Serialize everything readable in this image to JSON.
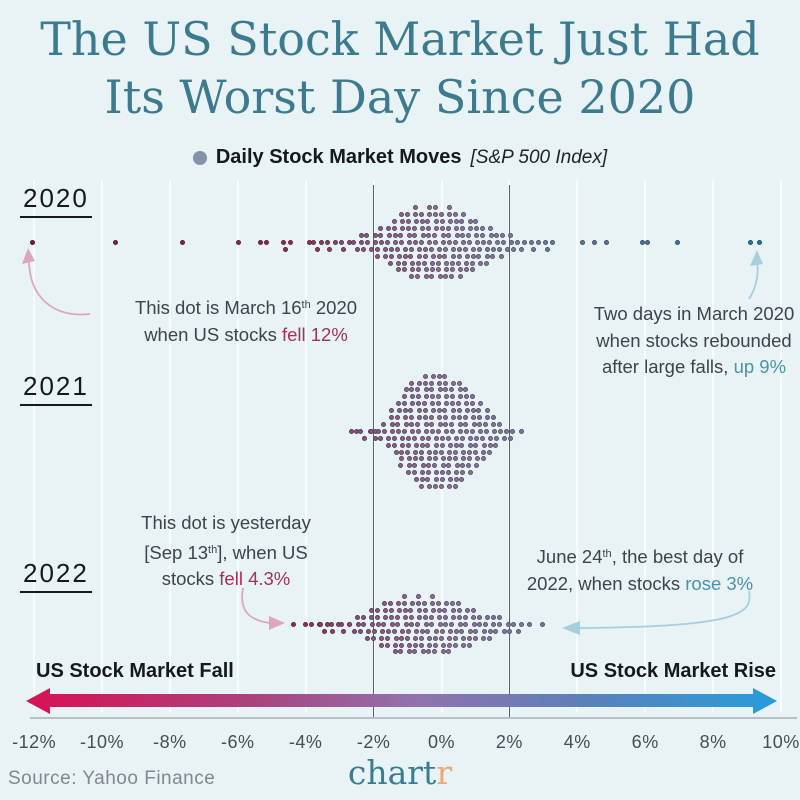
{
  "title": {
    "line1": "The US Stock Market Just Had",
    "line2": "Its Worst Day Since 2020"
  },
  "legend": {
    "label": "Daily Stock Market Moves",
    "detail": "[S&P 500 Index]",
    "dot_color": "#8394a9"
  },
  "annotations": {
    "a2020_left": {
      "lines": [
        [
          {
            "t": "This dot is March 16"
          },
          {
            "t": "th",
            "cls": "sup"
          },
          {
            "t": " 2020"
          }
        ],
        [
          {
            "t": "when US stocks "
          },
          {
            "t": "fell 12%",
            "cls": "red"
          }
        ]
      ]
    },
    "a2020_right": {
      "lines": [
        [
          {
            "t": "Two days in March 2020"
          }
        ],
        [
          {
            "t": "when stocks rebounded"
          }
        ],
        [
          {
            "t": "after large falls, "
          },
          {
            "t": "up 9%",
            "cls": "teal"
          }
        ]
      ]
    },
    "a2022_left": {
      "lines": [
        [
          {
            "t": "This dot is yesterday"
          }
        ],
        [
          {
            "t": "[Sep 13"
          },
          {
            "t": "th",
            "cls": "sup"
          },
          {
            "t": "], when US"
          }
        ],
        [
          {
            "t": "stocks "
          },
          {
            "t": "fell 4.3%",
            "cls": "red"
          }
        ]
      ]
    },
    "a2022_right": {
      "lines": [
        [
          {
            "t": "June 24"
          },
          {
            "t": "th",
            "cls": "sup"
          },
          {
            "t": ", the best day of"
          }
        ],
        [
          {
            "t": "2022, when stocks "
          },
          {
            "t": "rose 3%",
            "cls": "teal"
          }
        ]
      ]
    }
  },
  "footer": {
    "fall_label": "US Stock Market Fall",
    "rise_label": "US Stock Market Rise",
    "source": "Source: Yahoo Finance",
    "logo_main": "chart",
    "logo_accent": "r",
    "gradient_left": "#d41558",
    "gradient_mid": "#9272ae",
    "gradient_right": "#2c9ad7"
  },
  "colors": {
    "background": "#e8f3f6",
    "title_teal": "#3e7a8e",
    "accent_red": "#a63058",
    "accent_teal": "#4a93a8",
    "annotation_arrow_pink": "#dca6bf",
    "annotation_arrow_blue": "#a7cedd",
    "gridline": "#566068"
  },
  "chart_data": {
    "type": "beeswarm",
    "title": "Daily Stock Market Moves [S&P 500 Index]",
    "unit": "percent daily change",
    "x_axis": {
      "min": -12,
      "max": 10,
      "tick_values": [
        -12,
        -10,
        -8,
        -6,
        -4,
        -2,
        0,
        2,
        4,
        6,
        8,
        10
      ],
      "tick_labels": [
        "-12%",
        "-10%",
        "-8%",
        "-6%",
        "-4%",
        "-2%",
        "0%",
        "2%",
        "4%",
        "6%",
        "8%",
        "10%"
      ],
      "gridlines_pct": [
        -2,
        2
      ]
    },
    "color_scale": {
      "anchors": [
        [
          -12,
          [
            124,
            26,
            62
          ]
        ],
        [
          -5,
          [
            142,
            40,
            84
          ]
        ],
        [
          -3.5,
          [
            140,
            58,
            96
          ]
        ],
        [
          -2.2,
          [
            134,
            88,
            128
          ]
        ],
        [
          0,
          [
            138,
            113,
            150
          ]
        ],
        [
          2,
          [
            126,
            122,
            158
          ]
        ],
        [
          3,
          [
            108,
            123,
            152
          ]
        ],
        [
          5,
          [
            90,
            115,
            145
          ]
        ],
        [
          7,
          [
            74,
            119,
            154
          ]
        ],
        [
          9,
          [
            34,
            122,
            168
          ]
        ],
        [
          10,
          [
            30,
            120,
            168
          ]
        ]
      ]
    },
    "series": [
      {
        "name": "2020",
        "bins": [
          [
            -12,
            1
          ],
          [
            -9.6,
            1
          ],
          [
            -7.6,
            1
          ],
          [
            -6,
            1
          ],
          [
            -5.3,
            1
          ],
          [
            -5.1,
            1
          ],
          [
            -4.6,
            2
          ],
          [
            -4.4,
            1
          ],
          [
            -3.9,
            1
          ],
          [
            -3.7,
            2
          ],
          [
            -3.5,
            1
          ],
          [
            -3.3,
            2
          ],
          [
            -3.1,
            1
          ],
          [
            -2.9,
            2
          ],
          [
            -2.7,
            1
          ],
          [
            -2.5,
            2
          ],
          [
            -2.3,
            3
          ],
          [
            -2.1,
            3
          ],
          [
            -1.9,
            4
          ],
          [
            -1.7,
            5
          ],
          [
            -1.5,
            6
          ],
          [
            -1.3,
            8
          ],
          [
            -1.1,
            9
          ],
          [
            -0.9,
            10
          ],
          [
            -0.7,
            11
          ],
          [
            -0.5,
            10
          ],
          [
            -0.3,
            11
          ],
          [
            -0.1,
            11
          ],
          [
            0.1,
            10
          ],
          [
            0.3,
            11
          ],
          [
            0.5,
            10
          ],
          [
            0.7,
            9
          ],
          [
            0.9,
            8
          ],
          [
            1.1,
            7
          ],
          [
            1.3,
            6
          ],
          [
            1.5,
            5
          ],
          [
            1.7,
            4
          ],
          [
            1.9,
            3
          ],
          [
            2.1,
            3
          ],
          [
            2.3,
            2
          ],
          [
            2.5,
            1
          ],
          [
            2.7,
            2
          ],
          [
            2.9,
            1
          ],
          [
            3.1,
            2
          ],
          [
            3.3,
            1
          ],
          [
            4.2,
            1
          ],
          [
            4.5,
            1
          ],
          [
            4.9,
            1
          ],
          [
            5.9,
            1
          ],
          [
            6.1,
            1
          ],
          [
            7,
            1
          ],
          [
            9.1,
            1
          ],
          [
            9.4,
            1
          ]
        ]
      },
      {
        "name": "2021",
        "bins": [
          [
            -2.6,
            1
          ],
          [
            -2.5,
            1
          ],
          [
            -2.3,
            2
          ],
          [
            -2.1,
            1
          ],
          [
            -2.0,
            2
          ],
          [
            -1.9,
            1
          ],
          [
            -1.8,
            2
          ],
          [
            -1.6,
            4
          ],
          [
            -1.4,
            7
          ],
          [
            -1.2,
            10
          ],
          [
            -1.0,
            13
          ],
          [
            -0.8,
            15
          ],
          [
            -0.6,
            16
          ],
          [
            -0.4,
            17
          ],
          [
            -0.2,
            17
          ],
          [
            0,
            17
          ],
          [
            0.2,
            17
          ],
          [
            0.4,
            16
          ],
          [
            0.6,
            15
          ],
          [
            0.8,
            13
          ],
          [
            1.0,
            11
          ],
          [
            1.2,
            9
          ],
          [
            1.4,
            7
          ],
          [
            1.6,
            5
          ],
          [
            1.8,
            3
          ],
          [
            2.0,
            2
          ],
          [
            2.1,
            1
          ],
          [
            2.4,
            1
          ]
        ]
      },
      {
        "name": "2022",
        "bins": [
          [
            -4.3,
            1
          ],
          [
            -4.0,
            1
          ],
          [
            -3.8,
            1
          ],
          [
            -3.6,
            1
          ],
          [
            -3.5,
            2
          ],
          [
            -3.3,
            1
          ],
          [
            -3.2,
            2
          ],
          [
            -3.0,
            1
          ],
          [
            -2.9,
            2
          ],
          [
            -2.7,
            1
          ],
          [
            -2.6,
            2
          ],
          [
            -2.4,
            3
          ],
          [
            -2.2,
            4
          ],
          [
            -2.0,
            5
          ],
          [
            -1.8,
            6
          ],
          [
            -1.6,
            7
          ],
          [
            -1.4,
            8
          ],
          [
            -1.2,
            8
          ],
          [
            -1.0,
            9
          ],
          [
            -0.8,
            8
          ],
          [
            -0.6,
            9
          ],
          [
            -0.4,
            8
          ],
          [
            -0.2,
            9
          ],
          [
            0,
            8
          ],
          [
            0.2,
            8
          ],
          [
            0.4,
            7
          ],
          [
            0.6,
            7
          ],
          [
            0.8,
            6
          ],
          [
            1.0,
            5
          ],
          [
            1.2,
            4
          ],
          [
            1.4,
            4
          ],
          [
            1.6,
            3
          ],
          [
            1.8,
            3
          ],
          [
            2.0,
            2
          ],
          [
            2.2,
            2
          ],
          [
            2.4,
            1
          ],
          [
            2.6,
            1
          ],
          [
            3.0,
            1
          ]
        ]
      }
    ],
    "highlights": [
      {
        "series": "2020",
        "value": -12,
        "label": "March 16th 2020, US stocks fell 12%"
      },
      {
        "series": "2020",
        "value": 9,
        "label": "Two days in March 2020, rebounded up 9%"
      },
      {
        "series": "2022",
        "value": -4.3,
        "label": "Yesterday [Sep 13th], stocks fell 4.3%"
      },
      {
        "series": "2022",
        "value": 3,
        "label": "June 24th, best day of 2022, stocks rose 3%"
      }
    ]
  }
}
